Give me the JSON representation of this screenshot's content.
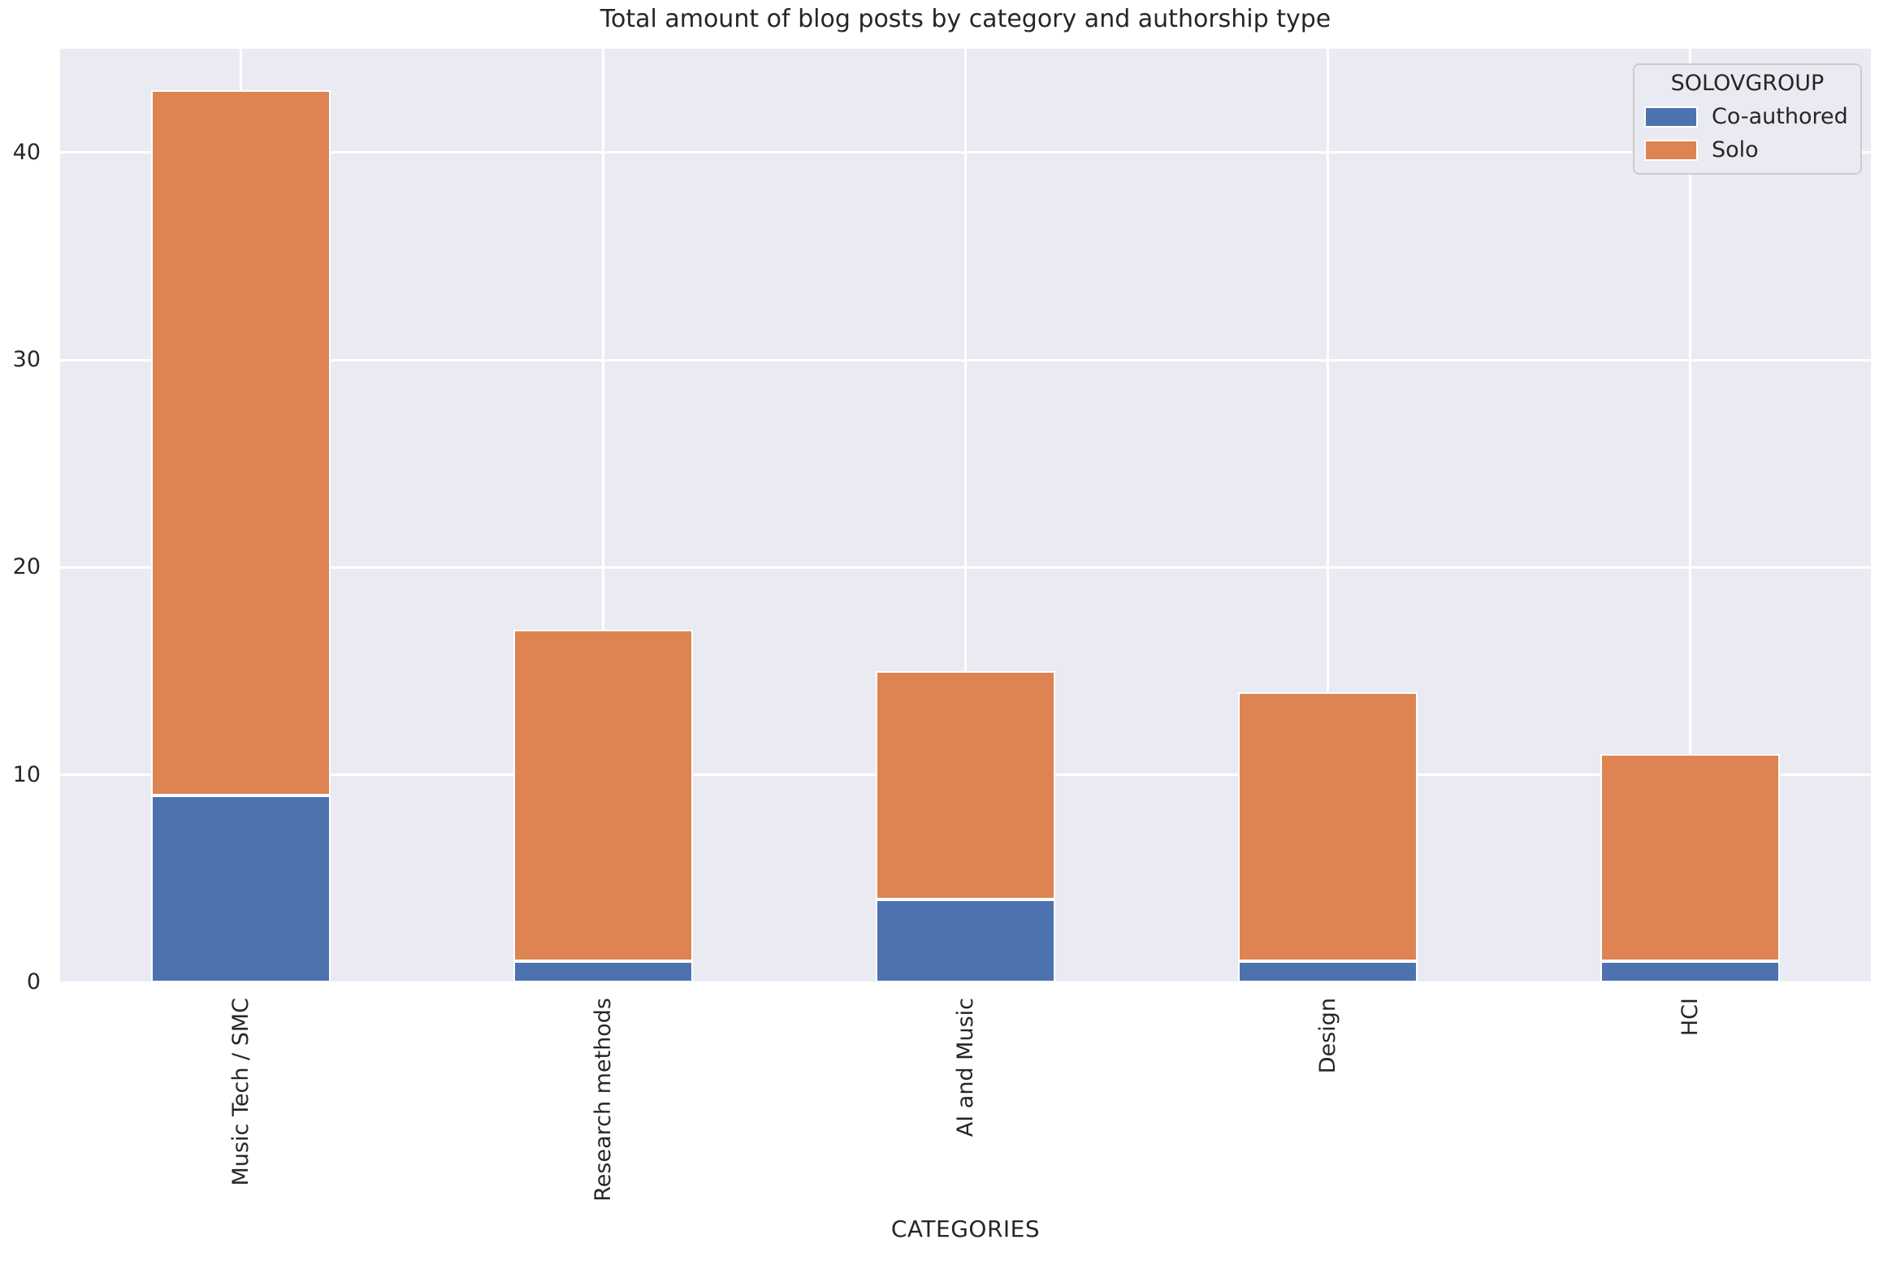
{
  "chart_data": {
    "type": "bar",
    "stacked": true,
    "title": "Total amount of blog posts by category and authorship type",
    "xlabel": "CATEGORIES",
    "ylabel": "",
    "categories": [
      "Music Tech / SMC",
      "Research methods",
      "AI and Music",
      "Design",
      "HCI"
    ],
    "series": [
      {
        "name": "Co-authored",
        "color": "#4C72B0",
        "values": [
          9,
          1,
          4,
          1,
          1
        ]
      },
      {
        "name": "Solo",
        "color": "#DD8452",
        "values": [
          34,
          16,
          11,
          13,
          10
        ]
      }
    ],
    "totals": [
      43,
      17,
      15,
      14,
      11
    ],
    "legend": {
      "title": "SOLOVGROUP",
      "position": "upper right"
    },
    "yticks": [
      0,
      10,
      20,
      30,
      40
    ],
    "ylim": [
      0,
      45
    ],
    "grid": true,
    "plot_background": "#EAEAF2",
    "grid_color": "#FFFFFF",
    "text_color": "#262626",
    "bar_edge_color": "#FFFFFF"
  }
}
